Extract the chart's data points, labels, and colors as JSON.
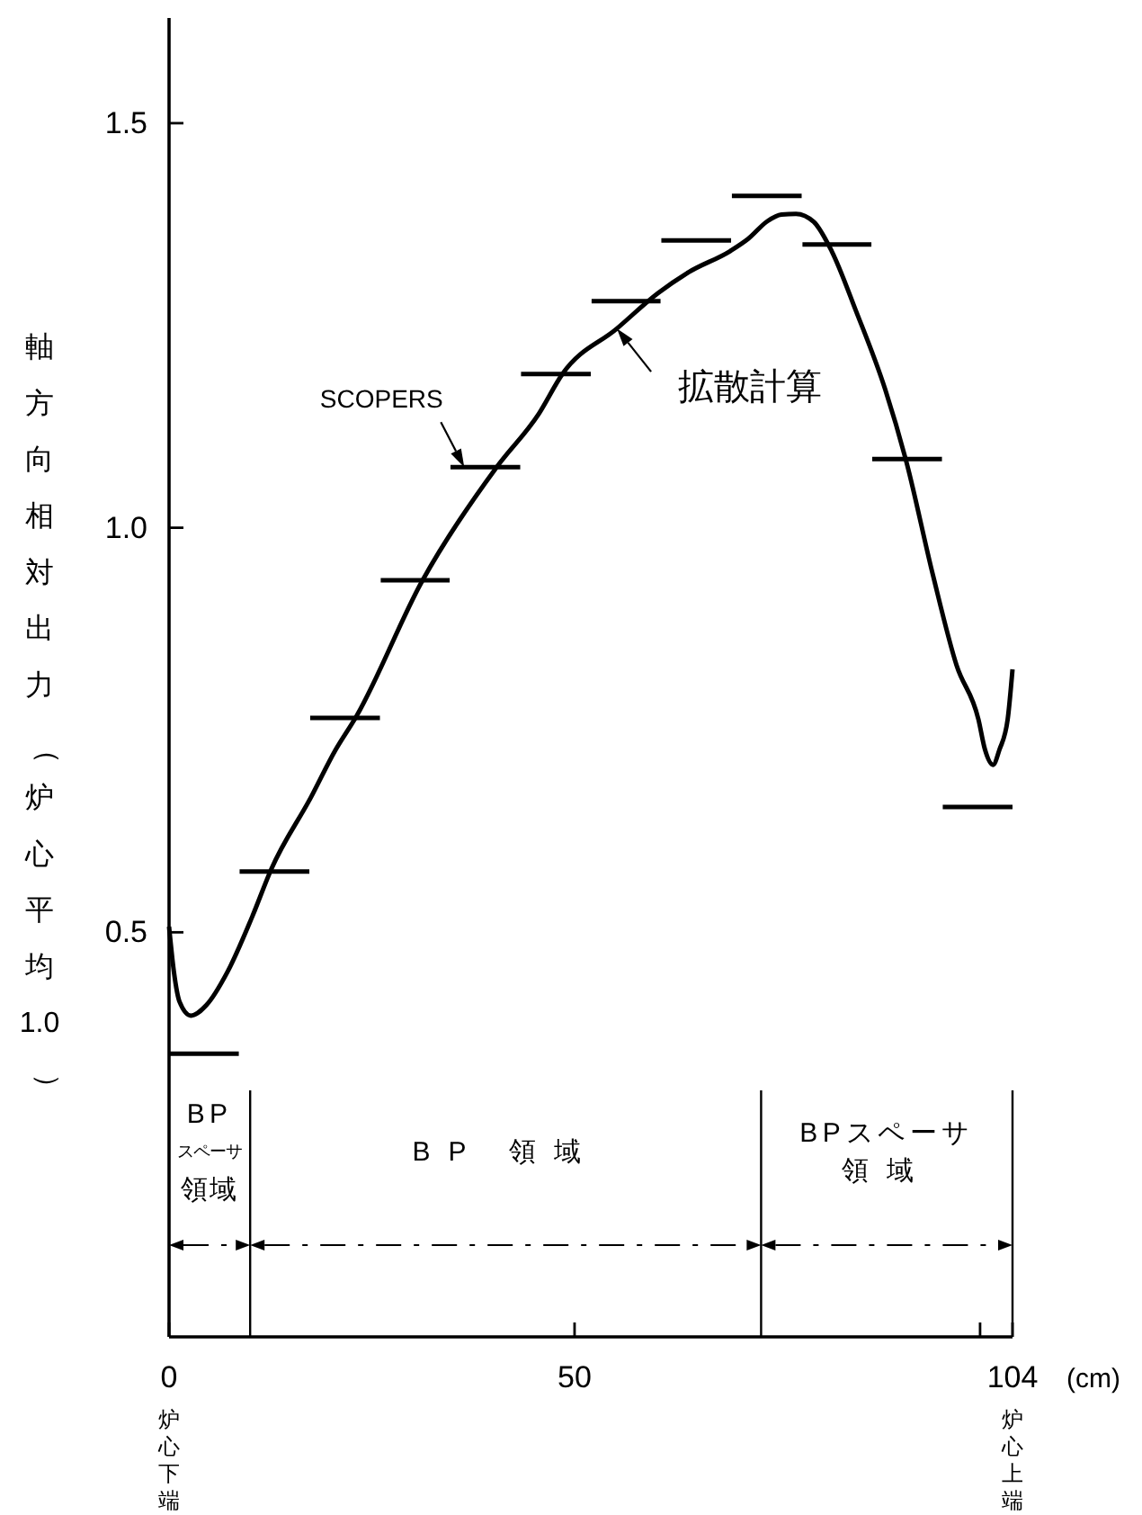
{
  "chart_data": {
    "type": "line",
    "xlabel": "(cm)",
    "ylabel": "軸方向相対出力（炉心平均1.0）",
    "xlim": [
      0,
      104
    ],
    "ylim": [
      0,
      1.63
    ],
    "xticks": [
      0,
      50,
      {
        "value": 100,
        "label": null
      },
      104
    ],
    "yticks": [
      0.5,
      {
        "value": 1,
        "label": "1.0"
      },
      1.5
    ],
    "series": [
      {
        "name": "拡散計算",
        "color": "#000000",
        "x": [
          0,
          0.6,
          1.3,
          2.7,
          4.6,
          7.2,
          10.2,
          12.6,
          17.5,
          20.5,
          23.1,
          31.2,
          40.4,
          45.6,
          48.5,
          55.2,
          60.3,
          64.1,
          69.2,
          71.4,
          73.8,
          75.5,
          77.3,
          79.5,
          81.7,
          84.7,
          88.3,
          90.9,
          94.2,
          97.1,
          99.8,
          100.6,
          101.6,
          102.4,
          103.4,
          104
        ],
        "values": [
          0.507,
          0.451,
          0.414,
          0.397,
          0.41,
          0.451,
          0.518,
          0.578,
          0.667,
          0.725,
          0.767,
          0.934,
          1.075,
          1.141,
          1.19,
          1.246,
          1.29,
          1.316,
          1.342,
          1.357,
          1.379,
          1.387,
          1.388,
          1.378,
          1.342,
          1.268,
          1.171,
          1.082,
          0.941,
          0.83,
          0.763,
          0.726,
          0.707,
          0.726,
          0.763,
          0.825
        ]
      },
      {
        "name": "SCOPERS",
        "color": "#000000",
        "x": [
          0,
          8.6,
          null,
          8.7,
          17.3,
          null,
          17.4,
          26,
          null,
          26.1,
          34.6,
          null,
          34.7,
          43.3,
          null,
          43.4,
          52,
          null,
          52.1,
          60.6,
          null,
          60.7,
          69.3,
          null,
          69.4,
          78,
          null,
          78.1,
          86.6,
          null,
          86.7,
          95.3,
          null,
          95.4,
          104
        ],
        "values": [
          0.35,
          0.35,
          null,
          0.575,
          0.575,
          null,
          0.765,
          0.765,
          null,
          0.935,
          0.935,
          null,
          1.075,
          1.075,
          null,
          1.19,
          1.19,
          null,
          1.28,
          1.28,
          null,
          1.355,
          1.355,
          null,
          1.41,
          1.41,
          null,
          1.35,
          1.35,
          null,
          1.085,
          1.085,
          null,
          0.655,
          0.655
        ]
      }
    ],
    "ref_lines": [
      {
        "axis": "x",
        "value": 10
      },
      {
        "axis": "x",
        "value": 73
      },
      {
        "axis": "x",
        "value": 104
      }
    ],
    "annotations": [
      "BPスペーサ領域",
      "BP 領域",
      "BPスペーサ領域",
      "炉心下端",
      "炉心上端"
    ]
  }
}
